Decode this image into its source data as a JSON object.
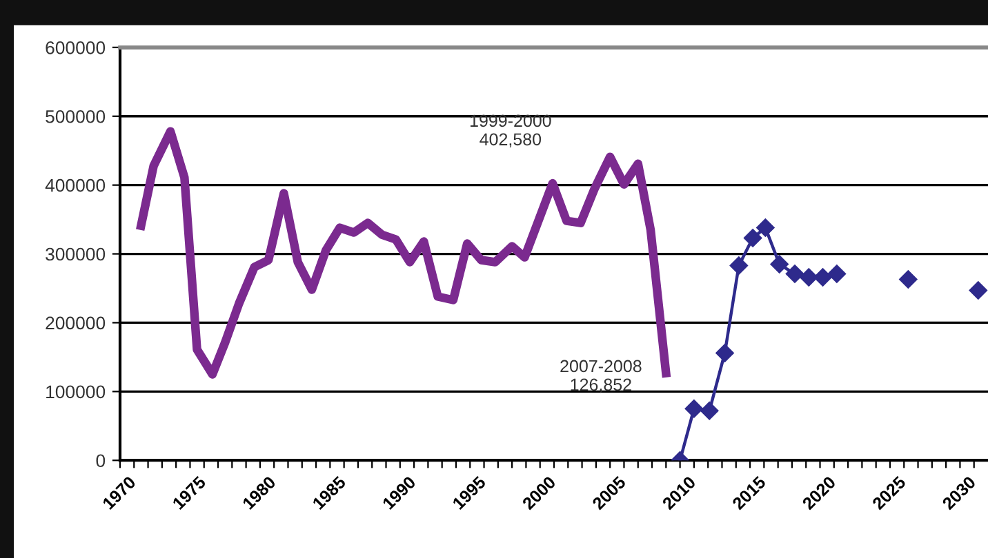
{
  "chart_data": {
    "type": "line",
    "x": [
      1971.5,
      1972.4,
      1973.6,
      1974.6,
      1975.5,
      1976.6,
      1977.5,
      1978.5,
      1979.6,
      1980.6,
      1981.7,
      1982.7,
      1983.7,
      1984.7,
      1985.7,
      1986.7,
      1987.7,
      1988.7,
      1989.7,
      1990.7,
      1991.7,
      1992.7,
      1993.8,
      1994.8,
      1995.8,
      1996.8,
      1998.0,
      1998.9,
      2000.9,
      2001.9,
      2002.9,
      2003.9,
      2005.0,
      2006.0,
      2007.0,
      2007.9,
      2009.0
    ],
    "series": [
      {
        "color": "#7b2a8f",
        "values": [
          341000,
          428000,
          478000,
          411000,
          161000,
          125000,
          171000,
          228000,
          281000,
          291000,
          388000,
          288000,
          248000,
          305000,
          338000,
          331000,
          345000,
          328000,
          321000,
          288000,
          318000,
          238000,
          233000,
          315000,
          291000,
          288000,
          311000,
          295000,
          402580,
          348000,
          345000,
          395000,
          441000,
          401000,
          431000,
          335000,
          126852
        ],
        "line_style": "solid",
        "marker": "none"
      },
      {
        "color": "#2e2a8c",
        "x": [
          2010.0,
          2011.0,
          2012.1,
          2013.2,
          2014.2,
          2015.2,
          2016.1,
          2017.1,
          2018.2,
          2019.2,
          2020.2,
          2021.2,
          2023.8,
          2026.3,
          2028.8,
          2031.3
        ],
        "values": [
          0,
          75000,
          72000,
          156000,
          283000,
          323000,
          338000,
          285000,
          271000,
          266000,
          266000,
          271000,
          null,
          263000,
          null,
          247000
        ],
        "line_style": "solid",
        "marker": "diamond"
      }
    ],
    "annotations": [
      {
        "text": "1999-2000\n402,580",
        "x": 2000.9,
        "y": 402580
      },
      {
        "text": "2007-2008\n126,852",
        "x": 2009.0,
        "y": 126852
      }
    ],
    "xlim": [
      1970,
      2032
    ],
    "xticks": [
      1970,
      {
        "value": 1971,
        "label": null
      },
      {
        "value": 1972,
        "label": null
      },
      {
        "value": 1973,
        "label": null
      },
      {
        "value": 1974,
        "label": null
      },
      1975,
      {
        "value": 1976,
        "label": null
      },
      {
        "value": 1977,
        "label": null
      },
      {
        "value": 1978,
        "label": null
      },
      {
        "value": 1979,
        "label": null
      },
      1980,
      {
        "value": 1981,
        "label": null
      },
      {
        "value": 1982,
        "label": null
      },
      {
        "value": 1983,
        "label": null
      },
      {
        "value": 1984,
        "label": null
      },
      1985,
      {
        "value": 1986,
        "label": null
      },
      {
        "value": 1987,
        "label": null
      },
      {
        "value": 1988,
        "label": null
      },
      {
        "value": 1989,
        "label": null
      },
      1990,
      {
        "value": 1991,
        "label": null
      },
      {
        "value": 1992,
        "label": null
      },
      {
        "value": 1993,
        "label": null
      },
      {
        "value": 1994,
        "label": null
      },
      1995,
      {
        "value": 1996,
        "label": null
      },
      {
        "value": 1997,
        "label": null
      },
      {
        "value": 1998,
        "label": null
      },
      {
        "value": 1999,
        "label": null
      },
      2000,
      {
        "value": 2001,
        "label": null
      },
      {
        "value": 2002,
        "label": null
      },
      {
        "value": 2003,
        "label": null
      },
      {
        "value": 2004,
        "label": null
      },
      2005,
      {
        "value": 2006,
        "label": null
      },
      {
        "value": 2007,
        "label": null
      },
      {
        "value": 2008,
        "label": null
      },
      {
        "value": 2009,
        "label": null
      },
      2010,
      {
        "value": 2011,
        "label": null
      },
      {
        "value": 2012,
        "label": null
      },
      {
        "value": 2013,
        "label": null
      },
      {
        "value": 2014,
        "label": null
      },
      2015,
      {
        "value": 2016,
        "label": null
      },
      {
        "value": 2017,
        "label": null
      },
      {
        "value": 2018,
        "label": null
      },
      {
        "value": 2019,
        "label": null
      },
      2020,
      {
        "value": 2021,
        "label": null
      },
      {
        "value": 2022,
        "label": null
      },
      {
        "value": 2023,
        "label": null
      },
      {
        "value": 2024,
        "label": null
      },
      2025,
      {
        "value": 2026,
        "label": null
      },
      {
        "value": 2027,
        "label": null
      },
      {
        "value": 2028,
        "label": null
      },
      {
        "value": 2029,
        "label": null
      },
      2030,
      {
        "value": 2031,
        "label": null
      }
    ],
    "ylim": [
      0,
      600000
    ],
    "yticks": [
      0,
      100000,
      200000,
      300000,
      400000,
      500000,
      600000
    ],
    "grid": "y",
    "legend": false
  }
}
